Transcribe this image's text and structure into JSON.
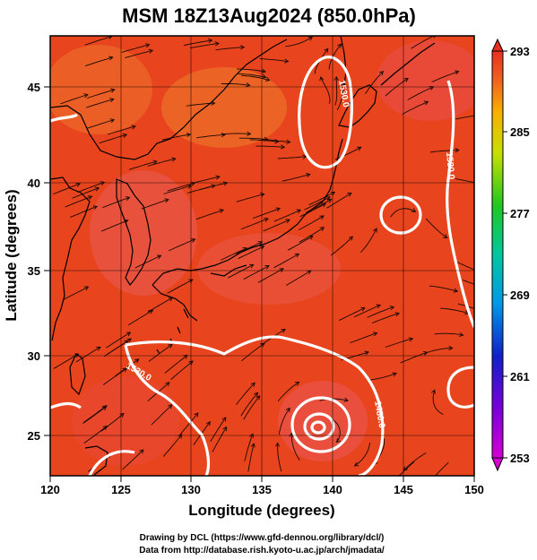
{
  "title": "MSM 18Z13Aug2024 (850.0hPa)",
  "xlabel": "Longitude (degrees)",
  "ylabel": "Latitude  (degrees)",
  "x_ticks": [
    "120",
    "125",
    "130",
    "135",
    "140",
    "145",
    "150"
  ],
  "y_ticks": [
    "25",
    "30",
    "35",
    "40",
    "45"
  ],
  "colorbar": {
    "ticks": [
      "293",
      "285",
      "277",
      "269",
      "261",
      "253"
    ],
    "min": 253,
    "max": 293
  },
  "contour_labels": [
    "1530.0",
    "1530.0",
    "1530.0",
    "1480.0",
    "1480.0"
  ],
  "credits": {
    "line1": "Drawing by DCL (https://www.gfd-dennou.org/library/dcl/)",
    "line2": "Data from http://database.rish.kyoto-u.ac.jp/arch/jmadata/"
  },
  "colors": {
    "warm_fill": "#e8401c",
    "coast": "#000000",
    "contour": "#ffffff"
  }
}
